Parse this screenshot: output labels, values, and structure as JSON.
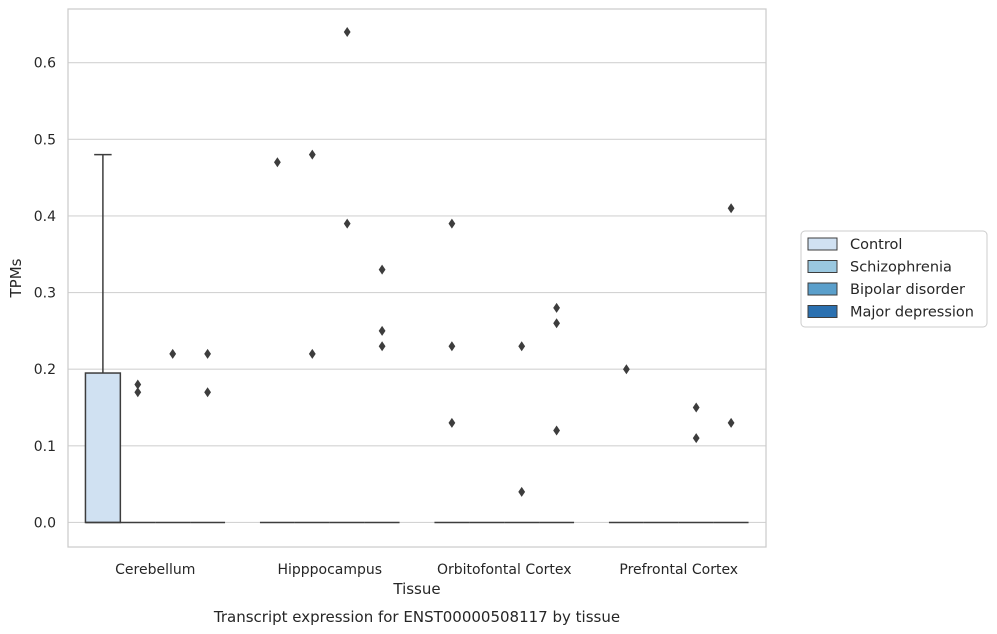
{
  "chart_data": {
    "type": "box",
    "title": "",
    "xlabel": "Tissue",
    "ylabel": "TPMs",
    "caption": "Transcript expression for ENST00000508117 by tissue",
    "categories": [
      "Cerebellum",
      "Hipppocampus",
      "Orbitofontal Cortex",
      "Prefrontal Cortex"
    ],
    "ylim": [
      -0.032,
      0.67
    ],
    "yticks": [
      0.0,
      0.1,
      0.2,
      0.3,
      0.4,
      0.5,
      0.6
    ],
    "ytick_labels": [
      "0.0",
      "0.1",
      "0.2",
      "0.3",
      "0.4",
      "0.5",
      "0.6"
    ],
    "grid": true,
    "legend_position": "right",
    "series": [
      {
        "name": "Control",
        "color": "#d0e1f2",
        "boxes": [
          {
            "q1": 0.0,
            "median": 0.0,
            "q3": 0.195,
            "whisker_low": 0.0,
            "whisker_high": 0.48,
            "outliers": []
          },
          {
            "q1": 0.0,
            "median": 0.0,
            "q3": 0.0,
            "whisker_low": 0.0,
            "whisker_high": 0.0,
            "outliers": [
              0.47
            ]
          },
          {
            "q1": 0.0,
            "median": 0.0,
            "q3": 0.0,
            "whisker_low": 0.0,
            "whisker_high": 0.0,
            "outliers": [
              0.39,
              0.23,
              0.13
            ]
          },
          {
            "q1": 0.0,
            "median": 0.0,
            "q3": 0.0,
            "whisker_low": 0.0,
            "whisker_high": 0.0,
            "outliers": [
              0.2
            ]
          }
        ]
      },
      {
        "name": "Schizophrenia",
        "color": "#9ac8e0",
        "boxes": [
          {
            "q1": 0.0,
            "median": 0.0,
            "q3": 0.0,
            "whisker_low": 0.0,
            "whisker_high": 0.0,
            "outliers": [
              0.18,
              0.17
            ]
          },
          {
            "q1": 0.0,
            "median": 0.0,
            "q3": 0.0,
            "whisker_low": 0.0,
            "whisker_high": 0.0,
            "outliers": [
              0.48,
              0.22
            ]
          },
          {
            "q1": 0.0,
            "median": 0.0,
            "q3": 0.0,
            "whisker_low": 0.0,
            "whisker_high": 0.0,
            "outliers": []
          },
          {
            "q1": 0.0,
            "median": 0.0,
            "q3": 0.0,
            "whisker_low": 0.0,
            "whisker_high": 0.0,
            "outliers": []
          }
        ]
      },
      {
        "name": "Bipolar disorder",
        "color": "#5a9fcb",
        "boxes": [
          {
            "q1": 0.0,
            "median": 0.0,
            "q3": 0.0,
            "whisker_low": 0.0,
            "whisker_high": 0.0,
            "outliers": [
              0.22
            ]
          },
          {
            "q1": 0.0,
            "median": 0.0,
            "q3": 0.0,
            "whisker_low": 0.0,
            "whisker_high": 0.0,
            "outliers": [
              0.64,
              0.39
            ]
          },
          {
            "q1": 0.0,
            "median": 0.0,
            "q3": 0.0,
            "whisker_low": 0.0,
            "whisker_high": 0.0,
            "outliers": [
              0.23,
              0.04
            ]
          },
          {
            "q1": 0.0,
            "median": 0.0,
            "q3": 0.0,
            "whisker_low": 0.0,
            "whisker_high": 0.0,
            "outliers": [
              0.15,
              0.11
            ]
          }
        ]
      },
      {
        "name": "Major depression",
        "color": "#2a70b0",
        "boxes": [
          {
            "q1": 0.0,
            "median": 0.0,
            "q3": 0.0,
            "whisker_low": 0.0,
            "whisker_high": 0.0,
            "outliers": [
              0.22,
              0.17
            ]
          },
          {
            "q1": 0.0,
            "median": 0.0,
            "q3": 0.0,
            "whisker_low": 0.0,
            "whisker_high": 0.0,
            "outliers": [
              0.33,
              0.25,
              0.23
            ]
          },
          {
            "q1": 0.0,
            "median": 0.0,
            "q3": 0.0,
            "whisker_low": 0.0,
            "whisker_high": 0.0,
            "outliers": [
              0.28,
              0.26,
              0.12
            ]
          },
          {
            "q1": 0.0,
            "median": 0.0,
            "q3": 0.0,
            "whisker_low": 0.0,
            "whisker_high": 0.0,
            "outliers": [
              0.41,
              0.13
            ]
          }
        ]
      }
    ]
  }
}
